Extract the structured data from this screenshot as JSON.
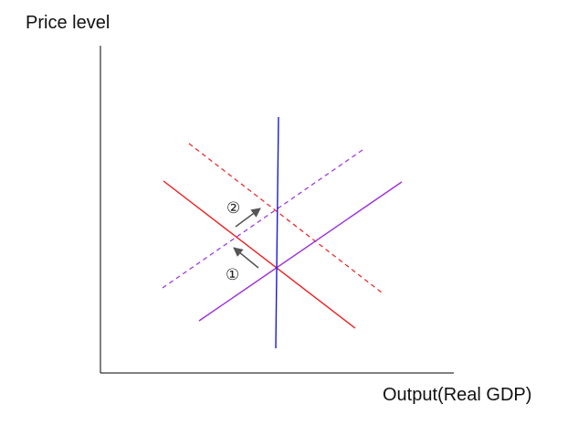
{
  "axes": {
    "ylabel": "Price level",
    "xlabel": "Output(Real GDP)"
  },
  "steps": [
    {
      "label": "②"
    },
    {
      "label": "①"
    }
  ],
  "colors": {
    "axis": "#000000",
    "demand": "#ee1c1c",
    "supply": "#9b30d9",
    "long_run_supply": "#1a1ad6",
    "arrow": "#555555"
  },
  "curves": [
    {
      "id": "original-demand",
      "color": "demand",
      "style": "solid"
    },
    {
      "id": "shifted-demand",
      "color": "demand",
      "style": "dashed"
    },
    {
      "id": "original-supply",
      "color": "supply",
      "style": "solid"
    },
    {
      "id": "shifted-supply",
      "color": "supply",
      "style": "dashed"
    },
    {
      "id": "long-run-supply",
      "color": "long_run_supply",
      "style": "solid"
    }
  ]
}
